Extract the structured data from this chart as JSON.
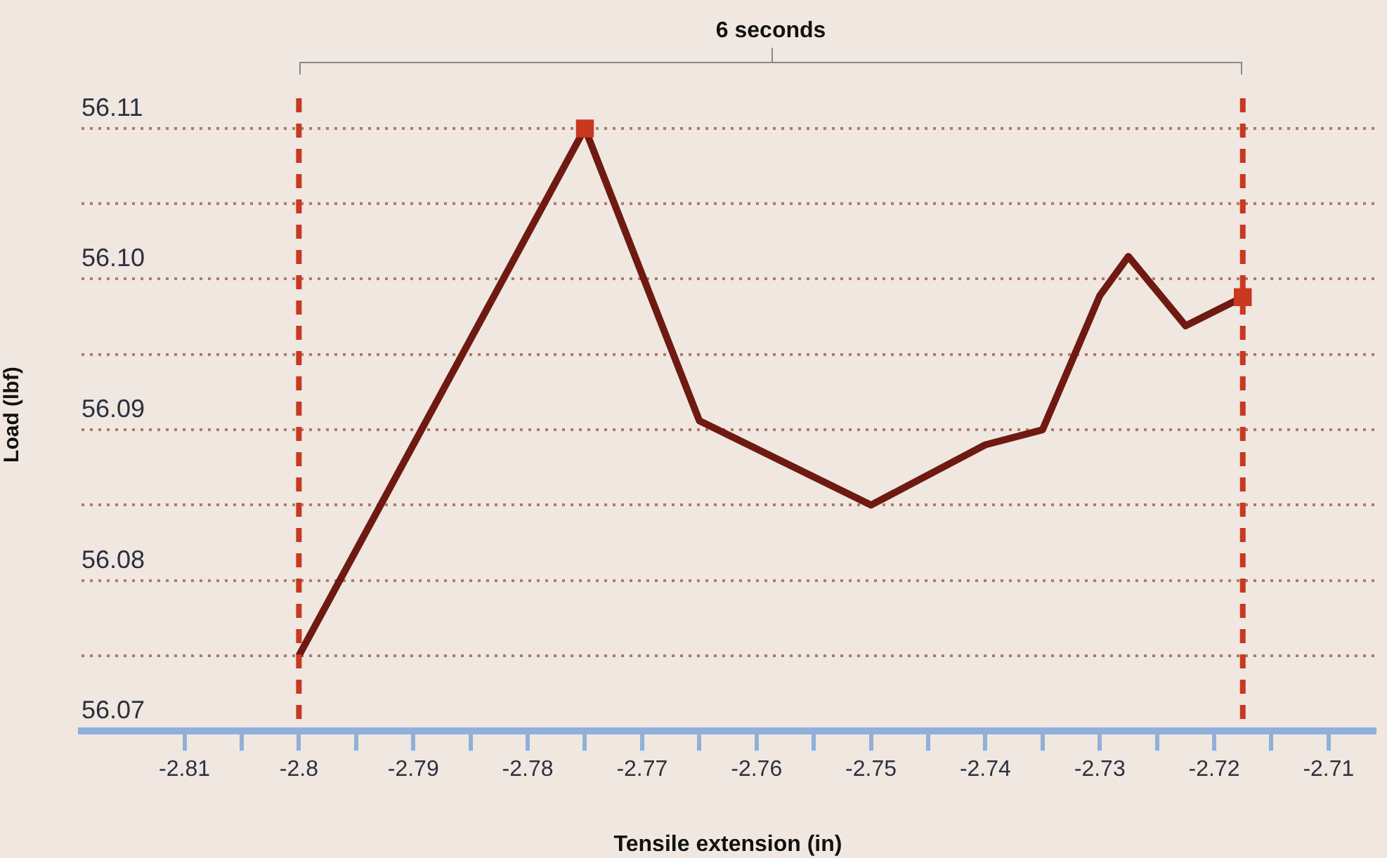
{
  "chart_data": {
    "type": "line",
    "xlabel": "Tensile extension (in)",
    "ylabel": "Load (lbf)",
    "annotations": [
      "6 seconds"
    ],
    "x": [
      -2.8,
      -2.775,
      -2.765,
      -2.75,
      -2.74,
      -2.735,
      -2.73,
      -2.7275,
      -2.7225,
      -2.7175
    ],
    "series": [
      {
        "color": "#6e1a12",
        "marker": "none",
        "values": [
          56.075,
          56.11,
          56.0906,
          56.085,
          56.089,
          56.09,
          56.0989,
          56.1015,
          56.0969,
          56.0988
        ]
      },
      {
        "type": "scatter",
        "color": "#c8391f",
        "marker": "square",
        "x": [
          -2.775,
          -2.7175
        ],
        "values": [
          56.11,
          56.0988
        ]
      }
    ],
    "xlim": [
      -2.819,
      -2.706
    ],
    "xticks": [
      -2.81,
      {
        "value": -2.805,
        "label": null
      },
      -2.8,
      {
        "value": -2.795,
        "label": null
      },
      -2.79,
      {
        "value": -2.785,
        "label": null
      },
      -2.78,
      {
        "value": -2.775,
        "label": null
      },
      -2.77,
      {
        "value": -2.765,
        "label": null
      },
      -2.76,
      {
        "value": -2.755,
        "label": null
      },
      -2.75,
      {
        "value": -2.745,
        "label": null
      },
      -2.74,
      {
        "value": -2.735,
        "label": null
      },
      -2.73,
      {
        "value": -2.725,
        "label": null
      },
      -2.72,
      {
        "value": -2.715,
        "label": null
      },
      -2.71
    ],
    "ylim": [
      56.07,
      56.112
    ],
    "yticks": [
      56.07,
      {
        "value": 56.075,
        "label": null
      },
      56.08,
      {
        "value": 56.085,
        "label": null
      },
      56.09,
      {
        "value": 56.095,
        "label": null
      },
      {
        "value": 56.1,
        "label": "56.10"
      },
      {
        "value": 56.105,
        "label": null
      },
      56.11
    ],
    "grid": "y",
    "legend": false,
    "ref_lines": [
      {
        "axis": "x",
        "value": -2.8,
        "color": "#c8391f",
        "line_style": "dashed"
      },
      {
        "axis": "x",
        "value": -2.7175,
        "color": "#c8391f",
        "line_style": "dashed"
      }
    ]
  }
}
